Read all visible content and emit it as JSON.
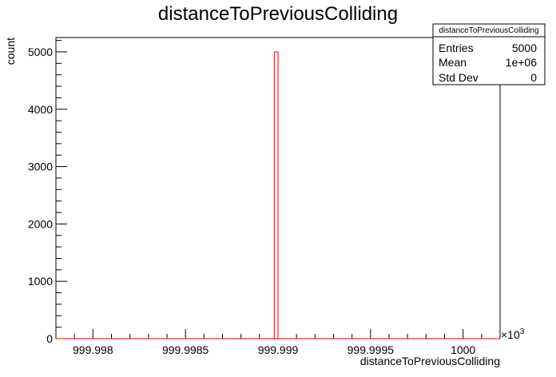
{
  "chart_data": {
    "type": "bar",
    "title": "distanceToPreviousColliding",
    "xlabel": "distanceToPreviousColliding",
    "ylabel": "count",
    "x_multiplier": "×10",
    "x_multiplier_exp": "3",
    "xlim": [
      999.9978,
      1000.0002
    ],
    "ylim": [
      0,
      5250
    ],
    "x_ticks": [
      999.998,
      999.9985,
      999.999,
      999.9995,
      1000
    ],
    "x_tick_labels": [
      "999.998",
      "999.9985",
      "999.999",
      "999.9995",
      "1000"
    ],
    "y_ticks": [
      0,
      1000,
      2000,
      3000,
      4000,
      5000
    ],
    "y_tick_labels": [
      "0",
      "1000",
      "2000",
      "3000",
      "4000",
      "5000"
    ],
    "bins": [
      {
        "x_low": 999.99898,
        "x_high": 999.999,
        "count": 5000
      }
    ],
    "line_color": "#ff0000",
    "grid": false,
    "legend_placement": "top-right"
  },
  "stats_box": {
    "title": "distanceToPreviousColliding",
    "rows": [
      {
        "label": "Entries",
        "value": "5000"
      },
      {
        "label": "Mean",
        "value": "1e+06"
      },
      {
        "label": "Std Dev",
        "value": "0"
      }
    ]
  }
}
